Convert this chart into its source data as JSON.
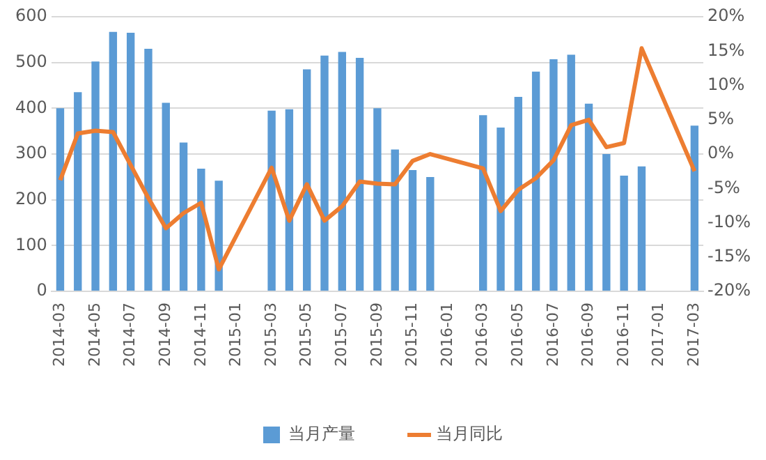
{
  "chart_data": {
    "type": "bar",
    "categories": [
      "2014-03",
      null,
      "2014-05",
      null,
      "2014-07",
      null,
      "2014-09",
      null,
      "2014-11",
      null,
      "2015-01",
      null,
      "2015-03",
      null,
      "2015-05",
      null,
      "2015-07",
      null,
      "2015-09",
      null,
      "2015-11",
      null,
      "2016-01",
      null,
      "2016-03",
      null,
      "2016-05",
      null,
      "2016-07",
      null,
      "2016-09",
      null,
      "2016-11",
      null,
      "2017-01",
      null,
      "2017-03"
    ],
    "series": [
      {
        "name": "当月产量",
        "color": "#5b9bd5",
        "values": [
          400,
          435,
          502,
          567,
          565,
          530,
          412,
          325,
          268,
          242,
          null,
          null,
          395,
          398,
          485,
          515,
          523,
          510,
          400,
          310,
          265,
          250,
          null,
          null,
          385,
          358,
          425,
          480,
          507,
          517,
          410,
          300,
          253,
          273,
          null,
          null,
          362
        ]
      },
      {
        "name": "当月同比",
        "type": "line",
        "axis": "y2",
        "color": "#ed7d31",
        "values": [
          -3.8,
          3,
          3.4,
          3.2,
          -1.6,
          -6.4,
          -10.8,
          -8.6,
          -7.1,
          -16.8,
          null,
          null,
          -2,
          -9.7,
          -4.4,
          -9.7,
          -7.6,
          -4,
          -4.3,
          -4.4,
          -1,
          0,
          null,
          null,
          -2.1,
          -8.3,
          -5.2,
          -3.5,
          -0.9,
          4.2,
          5,
          1,
          1.6,
          15.4,
          null,
          null,
          -2.5
        ]
      }
    ],
    "ylim": [
      0,
      600
    ],
    "yticks": [
      0,
      100,
      200,
      300,
      400,
      500,
      600
    ],
    "y2lim": [
      -20,
      20
    ],
    "y2ticks": [
      {
        "value": -20,
        "label": "-20%"
      },
      {
        "value": -15,
        "label": "-15%"
      },
      {
        "value": -10,
        "label": "-10%"
      },
      {
        "value": -5,
        "label": "-5%"
      },
      {
        "value": 0,
        "label": "0%"
      },
      {
        "value": 5,
        "label": "5%"
      },
      {
        "value": 10,
        "label": "10%"
      },
      {
        "value": 15,
        "label": "15%"
      },
      {
        "value": 20,
        "label": "20%"
      }
    ],
    "grid": "y",
    "legend": "bottom",
    "marker": "none",
    "line_style": "solid"
  }
}
